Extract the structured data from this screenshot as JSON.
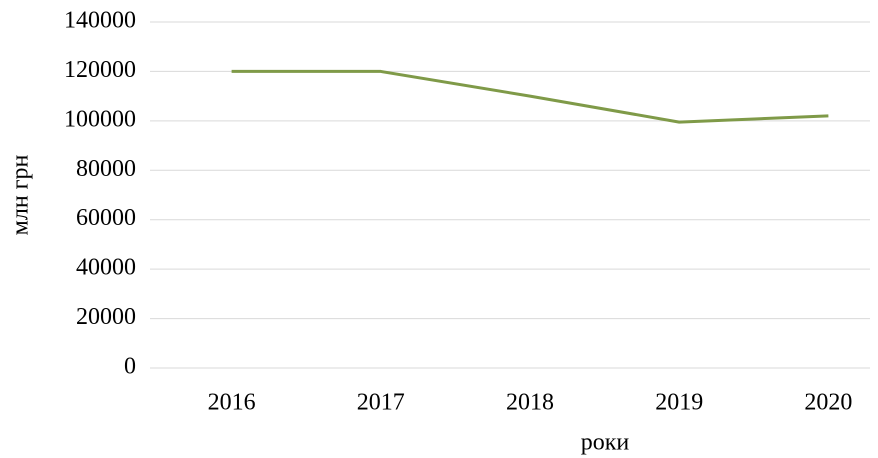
{
  "chart_data": {
    "type": "line",
    "categories": [
      "2016",
      "2017",
      "2018",
      "2019",
      "2020"
    ],
    "series": [
      {
        "name": "млн грн",
        "color": "#7f9a48",
        "values": [
          120000,
          120000,
          110000,
          99500,
          102000
        ]
      }
    ],
    "xlabel": "роки",
    "ylabel": "млн грн",
    "ylim": [
      0,
      140000
    ],
    "yticks": [
      0,
      20000,
      40000,
      60000,
      80000,
      100000,
      120000,
      140000
    ],
    "grid": true
  }
}
